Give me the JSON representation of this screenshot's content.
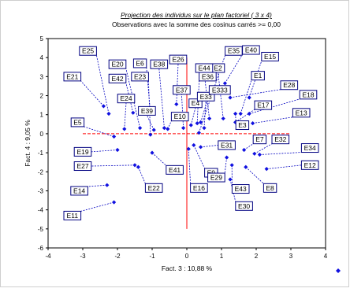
{
  "chart_data": {
    "type": "scatter",
    "title": "Projection des individus sur le plan factoriel (  3 x    4)",
    "subtitle": "Observations avec la somme des cosinus carrés >=  0,00",
    "xlabel": "Fact. 3 : 10,88 %",
    "ylabel": "Fact. 4 : 9,05 %",
    "xlim": [
      -4,
      4
    ],
    "ylim": [
      -6,
      5
    ],
    "xticks": [
      -4,
      -3,
      -2,
      -1,
      0,
      1,
      2,
      3,
      4
    ],
    "yticks": [
      -6,
      -5,
      -4,
      -3,
      -2,
      -1,
      0,
      1,
      2,
      3,
      4,
      5
    ],
    "grid": false,
    "reference_lines": {
      "x": 0,
      "y": 0,
      "color": "#ff0000"
    },
    "points": [
      {
        "name": "E1",
        "x": 1.55,
        "y": 1.05,
        "lx": 2.05,
        "ly": 3.05
      },
      {
        "name": "E2",
        "x": 1.05,
        "y": 0.8,
        "lx": 0.9,
        "ly": 3.45
      },
      {
        "name": "E3",
        "x": 1.4,
        "y": 1.05,
        "lx": 1.6,
        "ly": 0.45
      },
      {
        "name": "E4",
        "x": 0.12,
        "y": 0.45,
        "lx": 0.25,
        "ly": 1.6
      },
      {
        "name": "E5",
        "x": -2.1,
        "y": -0.15,
        "lx": -3.15,
        "ly": 0.6
      },
      {
        "name": "E6",
        "x": -1.05,
        "y": 1.1,
        "lx": -1.35,
        "ly": 3.7
      },
      {
        "name": "E7",
        "x": 1.65,
        "y": -0.85,
        "lx": 2.1,
        "ly": -0.3
      },
      {
        "name": "E8",
        "x": 1.7,
        "y": -1.75,
        "lx": 2.4,
        "ly": -2.85
      },
      {
        "name": "E9",
        "x": 0.2,
        "y": -0.6,
        "lx": 0.7,
        "ly": -2.05
      },
      {
        "name": "E10",
        "x": -0.55,
        "y": 0.25,
        "lx": -0.2,
        "ly": 0.9
      },
      {
        "name": "E11",
        "x": -2.1,
        "y": -3.6,
        "lx": -3.3,
        "ly": -4.3
      },
      {
        "name": "E12",
        "x": 2.3,
        "y": -1.85,
        "lx": 3.55,
        "ly": -1.65
      },
      {
        "name": "E13",
        "x": 1.9,
        "y": 0.55,
        "lx": 3.3,
        "ly": 1.1
      },
      {
        "name": "E14",
        "x": -2.3,
        "y": -2.7,
        "lx": -3.1,
        "ly": -3.0
      },
      {
        "name": "E15",
        "x": 1.8,
        "y": 1.9,
        "lx": 2.4,
        "ly": 4.05
      },
      {
        "name": "E16",
        "x": 0.05,
        "y": -0.8,
        "lx": 0.35,
        "ly": -2.85
      },
      {
        "name": "E17",
        "x": 1.4,
        "y": 0.6,
        "lx": 2.2,
        "ly": 1.5
      },
      {
        "name": "E18",
        "x": 1.8,
        "y": 1.05,
        "lx": 3.5,
        "ly": 2.05
      },
      {
        "name": "E19",
        "x": -2.0,
        "y": -0.85,
        "lx": -3.0,
        "ly": -0.95
      },
      {
        "name": "E20",
        "x": -1.35,
        "y": 0.3,
        "lx": -2.0,
        "ly": 3.65
      },
      {
        "name": "E21",
        "x": -2.4,
        "y": 1.45,
        "lx": -3.3,
        "ly": 3.0
      },
      {
        "name": "E22",
        "x": -1.4,
        "y": -1.75,
        "lx": -0.95,
        "ly": -2.85
      },
      {
        "name": "E23",
        "x": -1.05,
        "y": -0.05,
        "lx": -1.35,
        "ly": 3.0
      },
      {
        "name": "E24",
        "x": -1.8,
        "y": 0.25,
        "lx": -1.75,
        "ly": 1.85
      },
      {
        "name": "E25",
        "x": -2.25,
        "y": 1.05,
        "lx": -2.85,
        "ly": 4.35
      },
      {
        "name": "E26",
        "x": -0.3,
        "y": 1.55,
        "lx": -0.25,
        "ly": 3.9
      },
      {
        "name": "E27",
        "x": -1.5,
        "y": -1.65,
        "lx": -3.0,
        "ly": -1.7
      },
      {
        "name": "E28",
        "x": 1.25,
        "y": 1.9,
        "lx": 2.95,
        "ly": 2.55
      },
      {
        "name": "E29",
        "x": 1.15,
        "y": -1.25,
        "lx": 0.85,
        "ly": -2.3
      },
      {
        "name": "E30",
        "x": 1.25,
        "y": -2.4,
        "lx": 1.65,
        "ly": -3.8
      },
      {
        "name": "E31",
        "x": 0.4,
        "y": -0.7,
        "lx": 1.15,
        "ly": -0.6
      },
      {
        "name": "E32",
        "x": 1.95,
        "y": -1.05,
        "lx": 2.7,
        "ly": -0.3
      },
      {
        "name": "E33",
        "x": 0.5,
        "y": 0.3,
        "lx": 0.55,
        "ly": 1.95
      },
      {
        "name": "E34",
        "x": 2.1,
        "y": -1.1,
        "lx": 3.55,
        "ly": -0.75
      },
      {
        "name": "E35",
        "x": 0.35,
        "y": 0.05,
        "lx": 1.35,
        "ly": 4.35
      },
      {
        "name": "E36",
        "x": 0.3,
        "y": 0.55,
        "lx": 0.6,
        "ly": 3.0
      },
      {
        "name": "E37",
        "x": -0.1,
        "y": 0.3,
        "lx": -0.15,
        "ly": 2.3
      },
      {
        "name": "E38",
        "x": -0.65,
        "y": 0.3,
        "lx": -0.8,
        "ly": 3.65
      },
      {
        "name": "E39",
        "x": -0.95,
        "y": 0.2,
        "lx": -1.15,
        "ly": 1.2
      },
      {
        "name": "E40",
        "x": 1.1,
        "y": 2.65,
        "lx": 1.85,
        "ly": 4.4
      },
      {
        "name": "E41",
        "x": -1.0,
        "y": -1.0,
        "lx": -0.35,
        "ly": -1.9
      },
      {
        "name": "E42",
        "x": -1.55,
        "y": 1.1,
        "lx": -2.0,
        "ly": 2.9
      },
      {
        "name": "E43",
        "x": 1.3,
        "y": -1.65,
        "lx": 1.55,
        "ly": -2.9
      },
      {
        "name": "E44",
        "x": 0.65,
        "y": 0.8,
        "lx": 0.5,
        "ly": 3.45
      },
      {
        "name": "E333",
        "x": 0.4,
        "y": 0.6,
        "lx": 0.95,
        "ly": 2.3
      }
    ]
  }
}
